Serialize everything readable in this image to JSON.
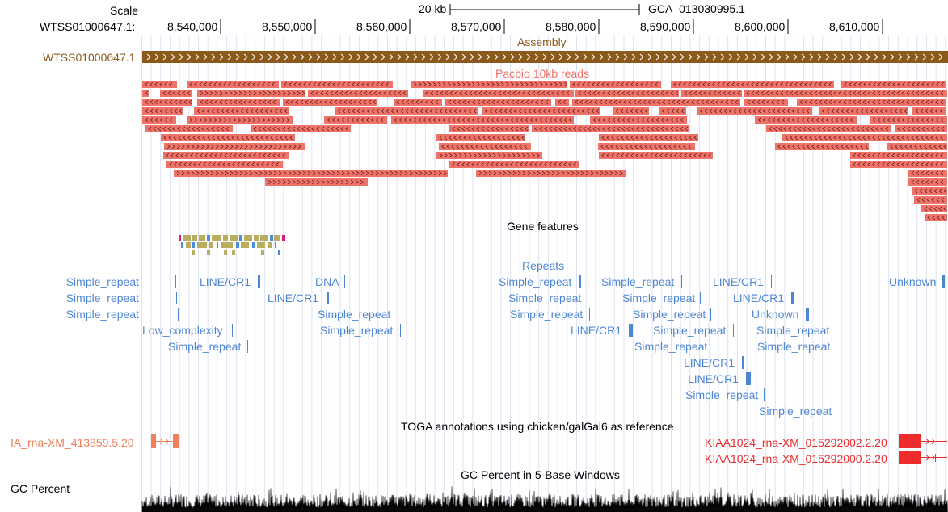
{
  "browser": {
    "scale_label": "Scale",
    "scale_bar_text": "20 kb",
    "assembly_name": "GCA_013030995.1",
    "chrom_label": "WTSS01000647.1:",
    "positions": [
      "8,540,000",
      "8,550,000",
      "8,560,000",
      "8,570,000",
      "8,580,000",
      "8,590,000",
      "8,600,000",
      "8,610,000"
    ]
  },
  "tracks": {
    "assembly": {
      "title": "Assembly",
      "label": "WTSS01000647.1",
      "color": "#8B5A1B"
    },
    "pacbio": {
      "title": "Pacbio 10kb reads",
      "color": "#F0736A"
    },
    "gene_features": {
      "title": "Gene features",
      "colors": [
        "#E0187A",
        "#B9AE5F",
        "#4A90D9"
      ]
    },
    "repeats": {
      "title": "Repeats",
      "color": "#4E86D6",
      "left_labels": [
        "Simple_repeat",
        "Simple_repeat",
        "Simple_repeat"
      ],
      "items": [
        "Simple_repeat",
        "Simple_repeat",
        "Simple_repeat",
        "Low_complexity",
        "Simple_repeat",
        "LINE/CR1",
        "LINE/CR1",
        "DNA",
        "Simple_repeat",
        "Simple_repeat",
        "Simple_repeat",
        "Simple_repeat",
        "Simple_repeat",
        "LINE/CR1",
        "Simple_repeat",
        "Simple_repeat",
        "Simple_repeat",
        "Simple_repeat",
        "Simple_repeat",
        "LINE/CR1",
        "LINE/CR1",
        "LINE/CR1",
        "Simple_repeat",
        "LINE/CR1",
        "LINE/CR1",
        "Unknown",
        "Simple_repeat",
        "Simple_repeat",
        "Simple_repeat",
        "Unknown"
      ]
    },
    "toga": {
      "title": "TOGA annotations using chicken/galGal6 as reference",
      "left_label": "IA_rna-XM_413859.5.20",
      "left_color": "#F0805A",
      "right_labels": [
        "KIAA1024_rna-XM_015292002.2.20",
        "KIAA1024_rna-XM_015292000.2.20"
      ],
      "right_color": "#EE2C2C"
    },
    "gc": {
      "title": "GC Percent in 5-Base Windows",
      "label": "GC Percent"
    }
  }
}
